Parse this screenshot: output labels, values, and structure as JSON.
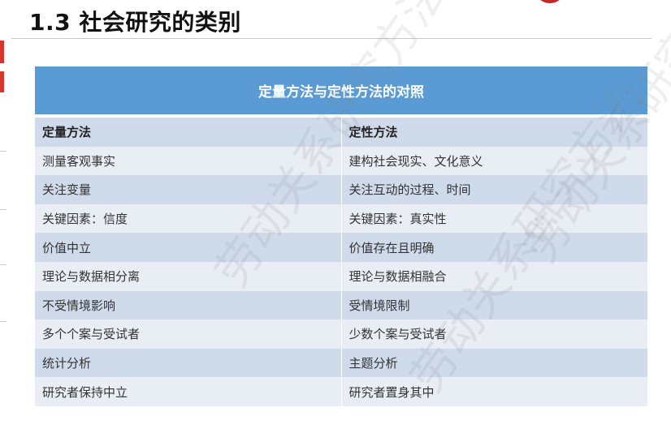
{
  "slide": {
    "title": "1.3  社会研究的类别",
    "watermark": "劳动关系研究方法"
  },
  "table": {
    "caption": "定量方法与定性方法的对照",
    "header": [
      "定量方法",
      "定性方法"
    ],
    "rows": [
      [
        "测量客观事实",
        "建构社会现实、文化意义"
      ],
      [
        "关注变量",
        "关注互动的过程、时间"
      ],
      [
        "关键因素：信度",
        "关键因素：真实性"
      ],
      [
        "价值中立",
        "价值存在且明确"
      ],
      [
        "理论与数据相分离",
        "理论与数据相融合"
      ],
      [
        "不受情境影响",
        "受情境限制"
      ],
      [
        "多个个案与受试者",
        "少数个案与受试者"
      ],
      [
        "统计分析",
        "主题分析"
      ],
      [
        "研究者保持中立",
        "研究者置身其中"
      ]
    ]
  },
  "colors": {
    "header_blue": "#5b9bd5",
    "row_dark": "#cfdaeb",
    "row_light": "#e9edf4",
    "accent_red": "#d9362b"
  }
}
